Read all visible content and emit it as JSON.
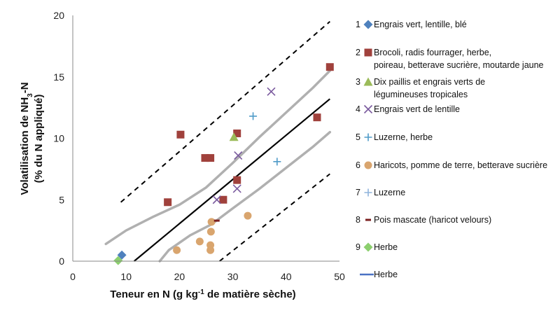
{
  "chart_data": {
    "type": "scatter",
    "title": "",
    "xlabel": {
      "pre": "Teneur en N (g kg",
      "sup": "-1",
      "post": " de matière sèche)"
    },
    "ylabel": {
      "line1": {
        "pre": "Volatilisation de NH",
        "sub": "3",
        "post": "-N"
      },
      "line2": "(% du N appliqué)"
    },
    "xlim": [
      0,
      50
    ],
    "ylim": [
      0,
      20
    ],
    "xticks": [
      "0",
      "10",
      "20",
      "30",
      "40",
      "50"
    ],
    "yticks": [
      "0",
      "5",
      "10",
      "15",
      "20"
    ],
    "grid": false,
    "legend_position": "right",
    "series": [
      {
        "num": "1",
        "name": "Engrais vert, lentille, blé",
        "lines": [
          "Engrais vert, lentille, blé"
        ],
        "marker": "diamond",
        "color": "#4f81bd",
        "points": [
          [
            9.2,
            0.5
          ]
        ]
      },
      {
        "num": "2",
        "name": "Brocoli, radis fourrager, herbe, poireau, betterave sucrière, moutarde jaune",
        "lines": [
          "Brocoli, radis fourrager, herbe,",
          "poireau, betterave sucrière, moutarde jaune"
        ],
        "marker": "square",
        "color": "#a0413c",
        "points": [
          [
            17.8,
            4.8
          ],
          [
            20.2,
            10.3
          ],
          [
            24.8,
            8.4
          ],
          [
            25.8,
            8.4
          ],
          [
            28.2,
            5.0
          ],
          [
            30.8,
            10.4
          ],
          [
            30.8,
            6.6
          ],
          [
            45.8,
            11.7
          ],
          [
            48.2,
            15.8
          ]
        ]
      },
      {
        "num": "3",
        "name": "Dix paillis et engrais verts de légumineuses tropicales",
        "lines": [
          "Dix paillis et engrais verts de",
          "légumineuses tropicales"
        ],
        "marker": "triangle",
        "color": "#9bbb59",
        "points": [
          [
            30.2,
            10.1
          ]
        ]
      },
      {
        "num": "4",
        "name": "Engrais vert de lentille",
        "lines": [
          "Engrais vert de lentille"
        ],
        "marker": "x",
        "color": "#7a5a9e",
        "points": [
          [
            27.0,
            5.0
          ],
          [
            31.0,
            8.6
          ],
          [
            30.8,
            5.9
          ],
          [
            37.2,
            13.8
          ]
        ]
      },
      {
        "num": "5",
        "name": "Luzerne, herbe",
        "lines": [
          "Luzerne, herbe"
        ],
        "marker": "plus",
        "color": "#4f9bc8",
        "points": [
          [
            33.8,
            11.8
          ],
          [
            38.3,
            8.1
          ]
        ]
      },
      {
        "num": "6",
        "name": "Haricots, pomme de terre, betterave sucrière",
        "lines": [
          "Haricots, pomme de terre, betterave sucrière"
        ],
        "marker": "circle",
        "color": "#d9a56e",
        "points": [
          [
            19.5,
            0.9
          ],
          [
            23.8,
            1.6
          ],
          [
            25.8,
            0.9
          ],
          [
            25.8,
            1.3
          ],
          [
            25.9,
            2.4
          ],
          [
            26.0,
            3.2
          ],
          [
            32.8,
            3.7
          ]
        ]
      },
      {
        "num": "7",
        "name": "Luzerne",
        "lines": [
          "Luzerne"
        ],
        "marker": "plus",
        "color": "#8fb4dc",
        "points": []
      },
      {
        "num": "8",
        "name": "Pois mascate (haricot velours)",
        "lines": [
          "Pois mascate (haricot velours)"
        ],
        "marker": "dash",
        "color": "#7b1f1f",
        "points": [
          [
            27.0,
            3.3
          ]
        ]
      },
      {
        "num": "9",
        "name": "Herbe",
        "lines": [
          "Herbe"
        ],
        "marker": "diamond",
        "color": "#8ccf6e",
        "points": [
          [
            8.5,
            0.05
          ]
        ]
      },
      {
        "num": "",
        "name": "Herbe",
        "lines": [
          "Herbe"
        ],
        "marker": "line",
        "color": "#4a72c4",
        "points": []
      }
    ],
    "regression": {
      "x1": 11.5,
      "y1": 0,
      "x2": 48.2,
      "y2": 13.2
    },
    "confidence_bands": [
      [
        [
          6.2,
          1.4
        ],
        [
          10,
          2.5
        ],
        [
          15,
          3.6
        ],
        [
          20,
          4.6
        ],
        [
          25,
          6.0
        ],
        [
          30,
          8.0
        ],
        [
          35,
          10.1
        ],
        [
          40,
          12.1
        ],
        [
          45,
          14.1
        ],
        [
          48.2,
          15.5
        ]
      ],
      [
        [
          16.3,
          0
        ],
        [
          18,
          0.9
        ],
        [
          22,
          2.1
        ],
        [
          26,
          3.0
        ],
        [
          30,
          4.3
        ],
        [
          35,
          5.9
        ],
        [
          40,
          7.6
        ],
        [
          45,
          9.3
        ],
        [
          48.2,
          10.5
        ]
      ]
    ],
    "prediction_bands": [
      [
        [
          9,
          4.8
        ],
        [
          48.2,
          19.5
        ]
      ],
      [
        [
          27.5,
          0
        ],
        [
          48.2,
          7.1
        ]
      ]
    ]
  }
}
